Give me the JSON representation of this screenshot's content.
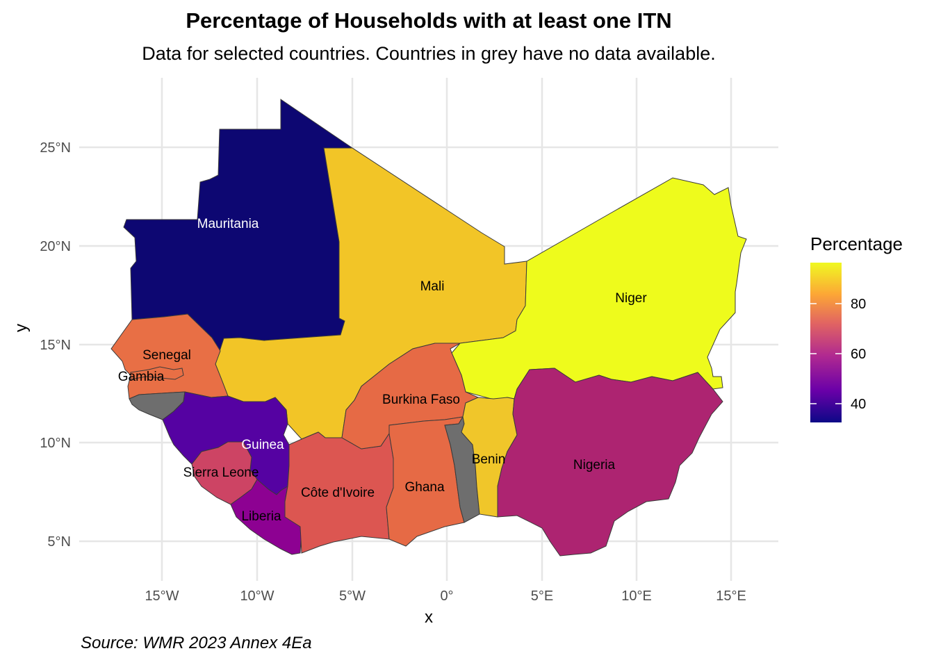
{
  "title": "Percentage of Households with at least one ITN",
  "subtitle": "Data for selected countries. Countries in grey have no data available.",
  "caption": "Source: WMR 2023 Annex 4Ea",
  "axes": {
    "x_title": "x",
    "y_title": "y",
    "x_ticks": [
      "15°W",
      "10°W",
      "5°W",
      "0°",
      "5°E",
      "10°E",
      "15°E"
    ],
    "y_ticks": [
      "25°N",
      "20°N",
      "15°N",
      "10°N",
      "5°N"
    ]
  },
  "legend": {
    "title": "Percentage",
    "ticks": [
      "80",
      "60",
      "40"
    ],
    "placement": "right"
  },
  "colors": {
    "no_data": "#6e6e6e",
    "grid": "#e6e6e6",
    "scale": [
      "#0d0887",
      "#6a00a8",
      "#b12a90",
      "#e16462",
      "#fca636",
      "#f0f921"
    ]
  },
  "countries": [
    {
      "name": "Mauritania",
      "label": "Mauritania",
      "value": 33,
      "color": "#0d0772"
    },
    {
      "name": "Mali",
      "label": "Mali",
      "value": 92,
      "color": "#f2c527"
    },
    {
      "name": "Niger",
      "label": "Niger",
      "value": 98,
      "color": "#eefb1c"
    },
    {
      "name": "Senegal",
      "label": "Senegal",
      "value": 76,
      "color": "#e86f45"
    },
    {
      "name": "Gambia",
      "label": "Gambia",
      "value": 76,
      "color": "#e86f45"
    },
    {
      "name": "Guinea-Bissau",
      "label": "",
      "value": null,
      "color": "#6e6e6e"
    },
    {
      "name": "Guinea",
      "label": "Guinea",
      "value": 47,
      "color": "#5502a2"
    },
    {
      "name": "Sierra Leone",
      "label": "Sierra Leone",
      "value": 69,
      "color": "#cd4464"
    },
    {
      "name": "Liberia",
      "label": "Liberia",
      "value": 56,
      "color": "#8d0192"
    },
    {
      "name": "Côte d'Ivoire",
      "label": "Côte d'Ivoire",
      "value": 74,
      "color": "#dc5651"
    },
    {
      "name": "Burkina Faso",
      "label": "Burkina Faso",
      "value": 77,
      "color": "#e66a45"
    },
    {
      "name": "Ghana",
      "label": "Ghana",
      "value": 77,
      "color": "#e66a45"
    },
    {
      "name": "Togo",
      "label": "",
      "value": null,
      "color": "#6e6e6e"
    },
    {
      "name": "Benin",
      "label": "Benin",
      "value": 91,
      "color": "#f0c62a"
    },
    {
      "name": "Nigeria",
      "label": "Nigeria",
      "value": 64,
      "color": "#ad2471"
    }
  ]
}
